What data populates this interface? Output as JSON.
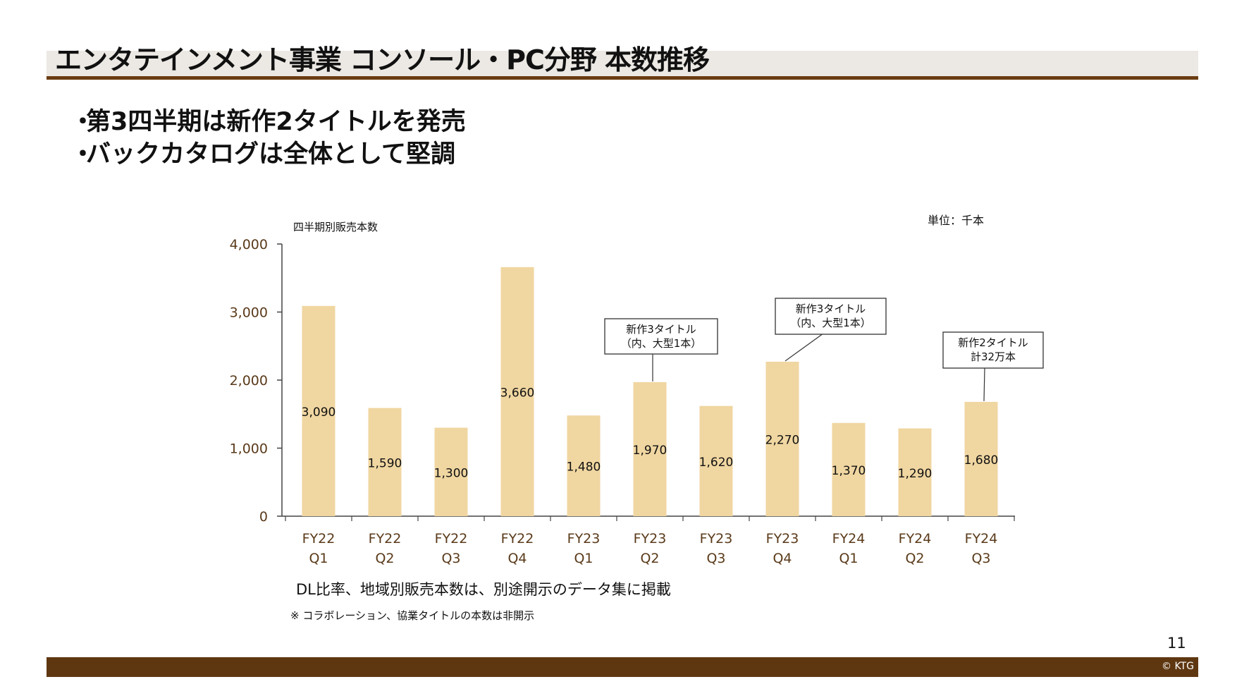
{
  "header": {
    "title": "エンタテインメント事業 コンソール・PC分野 本数推移"
  },
  "bullets": [
    {
      "mark": "・",
      "text": "第3四半期は新作2タイトルを発売"
    },
    {
      "mark": "・",
      "text": "バックカタログは全体として堅調"
    }
  ],
  "chart_data": {
    "type": "bar",
    "title": "四半期別販売本数",
    "unit_label": "単位：千本",
    "categories": [
      [
        "FY22",
        "Q1"
      ],
      [
        "FY22",
        "Q2"
      ],
      [
        "FY22",
        "Q3"
      ],
      [
        "FY22",
        "Q4"
      ],
      [
        "FY23",
        "Q1"
      ],
      [
        "FY23",
        "Q2"
      ],
      [
        "FY23",
        "Q3"
      ],
      [
        "FY23",
        "Q4"
      ],
      [
        "FY24",
        "Q1"
      ],
      [
        "FY24",
        "Q2"
      ],
      [
        "FY24",
        "Q3"
      ]
    ],
    "values": [
      3090,
      1590,
      1300,
      3660,
      1480,
      1970,
      1620,
      2270,
      1370,
      1290,
      1680
    ],
    "value_labels": [
      "3,090",
      "1,590",
      "1,300",
      "3,660",
      "1,480",
      "1,970",
      "1,620",
      "2,270",
      "1,370",
      "1,290",
      "1,680"
    ],
    "ylim": [
      0,
      4000
    ],
    "yticks": [
      0,
      1000,
      2000,
      3000,
      4000
    ],
    "ytick_labels": [
      "0",
      "1,000",
      "2,000",
      "3,000",
      "4,000"
    ],
    "annotations": [
      {
        "category_index": 5,
        "lines": [
          "新作3タイトル",
          "（内、大型1本）"
        ]
      },
      {
        "category_index": 7,
        "lines": [
          "新作3タイトル",
          "（内、大型1本）"
        ]
      },
      {
        "category_index": 10,
        "lines": [
          "新作2タイトル",
          "計32万本"
        ]
      }
    ],
    "colors": {
      "bar": "#f0d6a1",
      "axis": "#444444",
      "label": "#111111",
      "tick_label": "#5a3a1a"
    }
  },
  "notes": {
    "main": "DL比率、地域別販売本数は、別途開示のデータ集に掲載",
    "sub": "※ コラボレーション、協業タイトルの本数は非開示"
  },
  "footer": {
    "page_number": "11",
    "copyright": "© KTG"
  },
  "colors": {
    "title_band": "#ece9e4",
    "title_line": "#6b3d12",
    "footer_bar": "#5e3711"
  }
}
